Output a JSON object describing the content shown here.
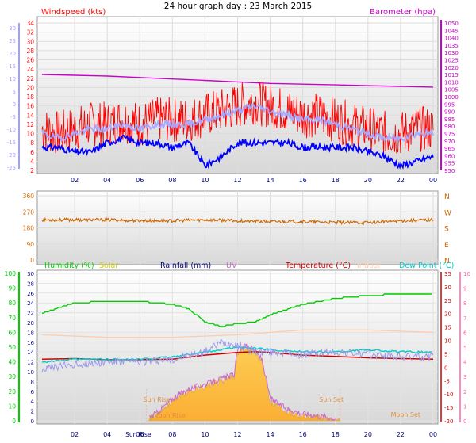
{
  "title": "24 hour graph day : 23 March 2015",
  "colors": {
    "wind": "#ff0000",
    "gust": "#0000ff",
    "baro": "#cc00cc",
    "windscale_left": "#a0a0ff",
    "dir": "#cc6600",
    "hum": "#00cc00",
    "solar": "#cccc00",
    "rain": "#000080",
    "uv": "#cc66cc",
    "temp": "#cc0000",
    "indoor": "#ffccaa",
    "dew": "#00cccc",
    "pink": "#ff66aa"
  },
  "chart_data": [
    {
      "type": "line",
      "panel": "wind_baro",
      "legend": [
        "Windspeed (kts)",
        "Barometer (hpa)"
      ],
      "x_ticks": [
        "02",
        "04",
        "06",
        "08",
        "10",
        "12",
        "14",
        "16",
        "18",
        "20",
        "22",
        "00"
      ],
      "y_left_ticks": [
        "34",
        "32",
        "30",
        "28",
        "26",
        "24",
        "22",
        "20",
        "18",
        "16",
        "14",
        "12",
        "10",
        "8",
        "6",
        "4",
        "2"
      ],
      "y_left2_ticks": [
        "30",
        "25",
        "20",
        "15",
        "10",
        "5",
        "0",
        "-5",
        "-10",
        "-15",
        "-20",
        "-25"
      ],
      "y_right_ticks": [
        "1050",
        "1045",
        "1040",
        "1035",
        "1030",
        "1025",
        "1020",
        "1015",
        "1010",
        "1005",
        "1000",
        "995",
        "990",
        "985",
        "980",
        "975",
        "970",
        "965",
        "960",
        "955",
        "950"
      ],
      "ylim_left": [
        2,
        34
      ],
      "ylim_right": [
        950,
        1050
      ],
      "series": [
        {
          "name": "Windspeed (kts)",
          "x": [
            0,
            1,
            2,
            3,
            4,
            5,
            6,
            7,
            8,
            9,
            10,
            11,
            12,
            13,
            14,
            15,
            16,
            17,
            18,
            19,
            20,
            21,
            22,
            23,
            24
          ],
          "y": [
            11,
            10,
            11,
            12,
            12,
            13,
            12,
            13,
            13,
            13,
            14,
            15,
            16,
            17,
            16,
            15,
            14,
            14,
            13,
            12,
            11,
            10,
            10,
            11,
            11
          ]
        },
        {
          "name": "Gust",
          "x": [
            0,
            1,
            2,
            3,
            4,
            5,
            6,
            7,
            8,
            9,
            10,
            11,
            12,
            13,
            14,
            15,
            16,
            17,
            18,
            19,
            20,
            21,
            22,
            23,
            24
          ],
          "y": [
            7,
            7,
            6,
            6,
            8,
            9,
            8,
            8,
            7,
            8,
            3,
            5,
            8,
            8,
            8,
            8,
            7,
            7,
            7,
            7,
            6,
            5,
            3,
            4,
            5
          ]
        },
        {
          "name": "Barometer (hpa)",
          "x": [
            0,
            2,
            4,
            6,
            8,
            10,
            12,
            14,
            16,
            18,
            20,
            22,
            24
          ],
          "y": [
            1015,
            1014.5,
            1014,
            1013,
            1012,
            1011,
            1010,
            1009,
            1008.5,
            1008,
            1007.5,
            1007,
            1006.5
          ]
        }
      ]
    },
    {
      "type": "line",
      "panel": "wind_direction",
      "y_left_ticks": [
        "360",
        "270",
        "180",
        "90",
        "0"
      ],
      "y_right_ticks": [
        "N",
        "W",
        "S",
        "E",
        "N"
      ],
      "ylim": [
        0,
        360
      ],
      "series": [
        {
          "name": "Direction",
          "x": [
            0,
            2,
            4,
            6,
            8,
            10,
            12,
            14,
            16,
            18,
            20,
            22,
            24
          ],
          "y": [
            225,
            225,
            225,
            220,
            220,
            225,
            220,
            215,
            215,
            210,
            210,
            220,
            225
          ]
        }
      ]
    },
    {
      "type": "line",
      "panel": "climate",
      "legend": [
        "Humidity (%)",
        "Solar",
        "Rainfall (mm)",
        "UV",
        "Temperature (°C)",
        "Indoor",
        "Dew Point (°C)"
      ],
      "y_left1_ticks": [
        "100",
        "90",
        "80",
        "70",
        "60",
        "50",
        "40",
        "30",
        "20",
        "10",
        "0"
      ],
      "y_left2_ticks": [
        "30",
        "28",
        "26",
        "24",
        "22",
        "20",
        "18",
        "16",
        "14",
        "12",
        "10",
        "8",
        "6",
        "4",
        "2",
        "0"
      ],
      "y_right1_ticks": [
        "35",
        "30",
        "25",
        "20",
        "15",
        "10",
        "5",
        "0",
        "-5",
        "-10",
        "-15",
        "-20"
      ],
      "y_right2_ticks": [
        "10",
        "9",
        "8",
        "7",
        "6",
        "5",
        "4",
        "3",
        "2",
        "1",
        "0"
      ],
      "annotations": [
        "Sun Rise",
        "Moon Rise",
        "Sun Set",
        "Moon Set",
        "Sun Rise",
        "Sun Set"
      ],
      "series": [
        {
          "name": "Humidity (%)",
          "x": [
            0,
            2,
            4,
            6,
            8,
            9,
            10,
            11,
            12,
            13,
            14,
            16,
            18,
            20,
            22,
            24
          ],
          "y": [
            73,
            80,
            81,
            81,
            79,
            76,
            67,
            64,
            66,
            67,
            72,
            79,
            83,
            85,
            86,
            86
          ]
        },
        {
          "name": "Indoor",
          "x": [
            0,
            4,
            8,
            12,
            16,
            20,
            24
          ],
          "y": [
            17.5,
            17,
            17,
            17.5,
            18.5,
            18.5,
            18
          ]
        },
        {
          "name": "Temperature (°C)",
          "x": [
            0,
            2,
            4,
            6,
            8,
            10,
            12,
            13,
            14,
            16,
            18,
            20,
            22,
            24
          ],
          "y": [
            3,
            3.2,
            2.8,
            2.8,
            3,
            4.5,
            5.5,
            5.8,
            5.5,
            4.5,
            4,
            3.5,
            3.2,
            3
          ]
        },
        {
          "name": "Dew Point (°C)",
          "x": [
            0,
            2,
            4,
            6,
            8,
            10,
            12,
            14,
            16,
            18,
            20,
            22,
            24
          ],
          "y": [
            12,
            12.5,
            12.5,
            12.5,
            13,
            14,
            15,
            14.5,
            14,
            14,
            14.5,
            14,
            14
          ]
        },
        {
          "name": "UV",
          "x": [
            0,
            2,
            4,
            6,
            8,
            10,
            11,
            12,
            13,
            14,
            16,
            18,
            20,
            22,
            24
          ],
          "y": [
            10.5,
            11.5,
            12,
            12,
            12.5,
            14,
            16,
            15.5,
            14,
            14,
            13.5,
            14,
            13.5,
            13,
            13
          ]
        },
        {
          "name": "Solar",
          "x": [
            6.4,
            7,
            8,
            9,
            10,
            11,
            11.8,
            12,
            12.5,
            13,
            13.5,
            14,
            15,
            16,
            17,
            18,
            18.3
          ],
          "y": [
            0,
            1,
            4,
            6,
            7,
            8,
            9,
            14,
            15,
            14,
            12,
            4,
            2,
            1,
            0.5,
            0,
            0
          ]
        }
      ]
    }
  ]
}
